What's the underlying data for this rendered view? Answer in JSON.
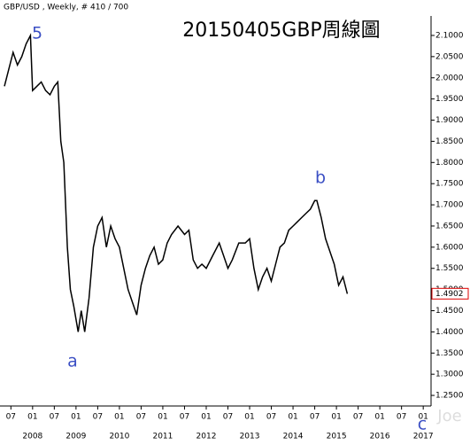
{
  "chart_data": {
    "type": "line",
    "header": "GBP/USD , Weekly, # 410 / 700",
    "title": "20150405GBP周線圖",
    "annotations": [
      "5",
      "a",
      "b",
      "c"
    ],
    "watermark": "Joe",
    "color": "#000000",
    "last_price": 1.4902,
    "x": [
      2007.35,
      2007.45,
      2007.55,
      2007.65,
      2007.75,
      2007.85,
      2007.95,
      2008.0,
      2008.1,
      2008.2,
      2008.3,
      2008.4,
      2008.5,
      2008.58,
      2008.65,
      2008.72,
      2008.8,
      2008.87,
      2008.95,
      2009.05,
      2009.12,
      2009.2,
      2009.3,
      2009.4,
      2009.5,
      2009.6,
      2009.7,
      2009.8,
      2009.9,
      2010.0,
      2010.1,
      2010.2,
      2010.3,
      2010.4,
      2010.5,
      2010.6,
      2010.7,
      2010.8,
      2010.9,
      2011.0,
      2011.1,
      2011.2,
      2011.35,
      2011.5,
      2011.6,
      2011.7,
      2011.8,
      2011.9,
      2012.0,
      2012.15,
      2012.3,
      2012.4,
      2012.5,
      2012.6,
      2012.75,
      2012.9,
      2013.0,
      2013.1,
      2013.2,
      2013.3,
      2013.4,
      2013.5,
      2013.6,
      2013.7,
      2013.8,
      2013.9,
      2014.0,
      2014.1,
      2014.2,
      2014.3,
      2014.4,
      2014.5,
      2014.55,
      2014.65,
      2014.75,
      2014.85,
      2014.95,
      2015.05,
      2015.15,
      2015.25
    ],
    "values": [
      1.98,
      2.02,
      2.06,
      2.03,
      2.05,
      2.08,
      2.1,
      1.97,
      1.98,
      1.99,
      1.97,
      1.96,
      1.98,
      1.99,
      1.85,
      1.8,
      1.6,
      1.5,
      1.46,
      1.4,
      1.45,
      1.4,
      1.48,
      1.6,
      1.65,
      1.67,
      1.6,
      1.65,
      1.62,
      1.6,
      1.55,
      1.5,
      1.47,
      1.44,
      1.51,
      1.55,
      1.58,
      1.6,
      1.56,
      1.57,
      1.61,
      1.63,
      1.65,
      1.63,
      1.64,
      1.57,
      1.55,
      1.56,
      1.55,
      1.58,
      1.61,
      1.58,
      1.55,
      1.57,
      1.61,
      1.61,
      1.62,
      1.55,
      1.5,
      1.53,
      1.55,
      1.52,
      1.56,
      1.6,
      1.61,
      1.64,
      1.65,
      1.66,
      1.67,
      1.68,
      1.69,
      1.71,
      1.71,
      1.67,
      1.62,
      1.59,
      1.56,
      1.51,
      1.53,
      1.49
    ],
    "xlim": [
      2007.31,
      2017.18
    ],
    "ylim": [
      1.225,
      2.146
    ],
    "xticks": [
      {
        "value": 2007.5,
        "label": "07"
      },
      {
        "value": 2008.0,
        "label": "01"
      },
      {
        "value": 2008.5,
        "label": "07"
      },
      {
        "value": 2009.0,
        "label": "01"
      },
      {
        "value": 2009.5,
        "label": "07"
      },
      {
        "value": 2010.0,
        "label": "01"
      },
      {
        "value": 2010.5,
        "label": "07"
      },
      {
        "value": 2011.0,
        "label": "01"
      },
      {
        "value": 2011.5,
        "label": "07"
      },
      {
        "value": 2012.0,
        "label": "01"
      },
      {
        "value": 2012.5,
        "label": "07"
      },
      {
        "value": 2013.0,
        "label": "01"
      },
      {
        "value": 2013.5,
        "label": "07"
      },
      {
        "value": 2014.0,
        "label": "01"
      },
      {
        "value": 2014.5,
        "label": "07"
      },
      {
        "value": 2015.0,
        "label": "01"
      },
      {
        "value": 2015.5,
        "label": "07"
      },
      {
        "value": 2016.0,
        "label": "01"
      },
      {
        "value": 2016.5,
        "label": "07"
      },
      {
        "value": 2017.0,
        "label": "01"
      }
    ],
    "years": [
      2008,
      2009,
      2010,
      2011,
      2012,
      2013,
      2014,
      2015,
      2016,
      2017
    ],
    "yticks": [
      {
        "value": 1.25,
        "label": "1.2500"
      },
      {
        "value": 1.3,
        "label": "1.3000"
      },
      {
        "value": 1.35,
        "label": "1.3500"
      },
      {
        "value": 1.4,
        "label": "1.4000"
      },
      {
        "value": 1.45,
        "label": "1.4500"
      },
      {
        "value": 1.5,
        "label": "1.5000"
      },
      {
        "value": 1.55,
        "label": "1.5500"
      },
      {
        "value": 1.6,
        "label": "1.6000"
      },
      {
        "value": 1.65,
        "label": "1.6500"
      },
      {
        "value": 1.7,
        "label": "1.7000"
      },
      {
        "value": 1.75,
        "label": "1.7500"
      },
      {
        "value": 1.8,
        "label": "1.8000"
      },
      {
        "value": 1.85,
        "label": "1.8500"
      },
      {
        "value": 1.9,
        "label": "1.9000"
      },
      {
        "value": 1.95,
        "label": "1.9500"
      },
      {
        "value": 2.0,
        "label": "2.0000"
      },
      {
        "value": 2.05,
        "label": "2.0500"
      },
      {
        "value": 2.1,
        "label": "2.1000"
      }
    ]
  }
}
